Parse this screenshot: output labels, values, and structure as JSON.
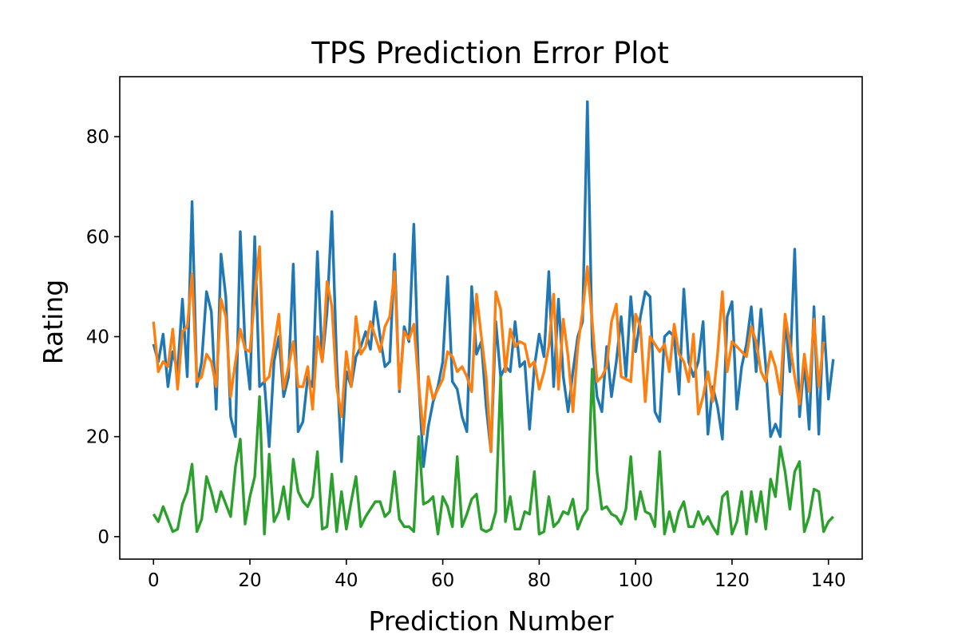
{
  "chart_data": {
    "type": "line",
    "title": "TPS Prediction Error Plot",
    "xlabel": "Prediction Number",
    "ylabel": "Rating",
    "xlim": [
      -7,
      147
    ],
    "ylim": [
      -4.5,
      92
    ],
    "xticks": [
      0,
      20,
      40,
      60,
      80,
      100,
      120,
      140
    ],
    "yticks": [
      0,
      20,
      40,
      60,
      80
    ],
    "grid": false,
    "series": [
      {
        "color": "#1f77b4",
        "values": [
          38.5,
          35,
          40.5,
          30,
          37,
          33,
          47.5,
          32,
          67,
          30,
          35,
          49,
          45,
          25.5,
          56.5,
          48,
          24,
          20,
          61,
          38,
          29.5,
          60,
          30,
          31,
          18,
          35,
          40,
          28,
          32,
          54.5,
          21,
          23,
          32,
          30,
          57,
          35,
          45,
          65,
          35,
          15,
          33,
          30,
          36,
          38,
          41,
          37.5,
          47,
          40,
          34,
          35,
          56.5,
          29,
          42,
          39,
          62.5,
          31,
          14,
          22,
          27,
          30,
          35,
          52,
          31,
          29.5,
          24,
          21,
          50,
          36.5,
          39,
          26,
          17,
          43,
          32,
          34,
          33,
          43,
          34,
          35,
          21.5,
          34,
          40.5,
          36,
          53,
          30,
          47.5,
          32,
          25,
          33,
          40,
          43,
          87,
          38,
          28,
          25,
          38,
          28,
          35,
          44,
          32,
          48,
          37,
          44,
          49,
          48,
          25,
          23,
          40,
          41,
          40,
          28.5,
          49.5,
          35,
          32,
          35,
          43,
          20.5,
          30,
          26,
          19.5,
          44,
          47,
          25.5,
          34,
          38.5,
          46,
          33,
          45.5,
          34,
          20,
          22.5,
          20,
          44,
          33,
          57.5,
          24,
          35,
          21.5,
          46,
          20.5,
          44,
          27.5,
          35.5
        ]
      },
      {
        "color": "#ff7f0e",
        "values": [
          43,
          33,
          35,
          34,
          41.5,
          29.5,
          41,
          42,
          52.5,
          31,
          32,
          36.5,
          35,
          30,
          47.5,
          44,
          28,
          35,
          41.5,
          37.5,
          37,
          48,
          58,
          31,
          32,
          38,
          44.5,
          29.5,
          34,
          39,
          30,
          30,
          34,
          25.5,
          40,
          35,
          51,
          46,
          30,
          24,
          37,
          30,
          44,
          36.5,
          38,
          43,
          40,
          37,
          42,
          44,
          53,
          29.5,
          41,
          39.5,
          42.5,
          30.5,
          20.5,
          32,
          27.5,
          29.5,
          31.5,
          37,
          36,
          33,
          34,
          32,
          29,
          48.5,
          40,
          32,
          17,
          49,
          45.5,
          33,
          41.5,
          38,
          39,
          38.5,
          34,
          35,
          29.5,
          33,
          38,
          48.5,
          29.5,
          43.5,
          36,
          25,
          38,
          45,
          54,
          43,
          31,
          32,
          34,
          43,
          46.5,
          32,
          31.5,
          31,
          44.5,
          42,
          27,
          40,
          38.5,
          37,
          38.5,
          33,
          42.5,
          36.5,
          35,
          31,
          40.5,
          24.5,
          28,
          33,
          27,
          36.5,
          49,
          33,
          39,
          38,
          37,
          36,
          42,
          39,
          33,
          31,
          37,
          34,
          28.5,
          44.5,
          38.5,
          32,
          26.5,
          36.5,
          29,
          43.5,
          30,
          39
        ]
      },
      {
        "color": "#2ca02c",
        "values": [
          4.5,
          3,
          6,
          3.5,
          1,
          1.5,
          6.5,
          9,
          14.5,
          1,
          3.5,
          12,
          9,
          5,
          9,
          6.5,
          4,
          14,
          19.5,
          2.5,
          8,
          12,
          28,
          0.5,
          16.5,
          3,
          5,
          10,
          3.5,
          15.5,
          9,
          7,
          6,
          8,
          17,
          1.5,
          2,
          12.5,
          1,
          9,
          1.5,
          7,
          12,
          2,
          4,
          5.5,
          7,
          7,
          4,
          5,
          13,
          3.5,
          2,
          2,
          1,
          20,
          6.5,
          7,
          8,
          0.5,
          8,
          6,
          2,
          16,
          2,
          4.5,
          7.5,
          8.5,
          1.5,
          1,
          1.5,
          5,
          32,
          3,
          8,
          1.5,
          1.5,
          5,
          4.5,
          13,
          0.5,
          1,
          8,
          2,
          3,
          5,
          4.5,
          7.5,
          1.5,
          4,
          5.5,
          33.5,
          13,
          5.5,
          6,
          4.5,
          4,
          2.5,
          5.5,
          16,
          3.5,
          9,
          5,
          4.5,
          2,
          17,
          0.5,
          5,
          1,
          5,
          7,
          2,
          2,
          5,
          2.5,
          4,
          2,
          0.5,
          8,
          9,
          0.5,
          3,
          9,
          0.5,
          9,
          3,
          9,
          1.5,
          11.5,
          8,
          18,
          13,
          5.5,
          13,
          15,
          1,
          4,
          9.5,
          9,
          1,
          3,
          4
        ]
      }
    ]
  }
}
